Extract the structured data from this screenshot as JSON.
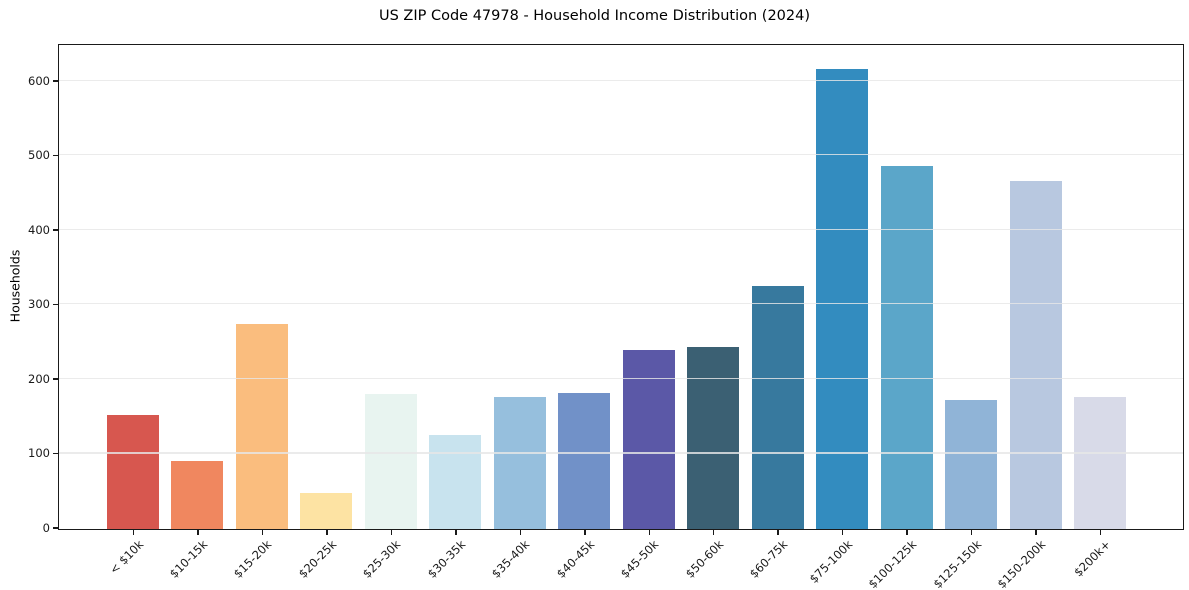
{
  "chart_data": {
    "type": "bar",
    "title": "US ZIP Code 47978 - Household Income Distribution (2024)",
    "xlabel": "",
    "ylabel": "Households",
    "categories": [
      "< $10k",
      "$10-15k",
      "$15-20k",
      "$20-25k",
      "$25-30k",
      "$30-35k",
      "$35-40k",
      "$40-45k",
      "$45-50k",
      "$50-60k",
      "$60-75k",
      "$75-100k",
      "$100-125k",
      "$125-150k",
      "$150-200k",
      "$200k+"
    ],
    "values": [
      152,
      91,
      275,
      47,
      181,
      126,
      177,
      182,
      240,
      244,
      326,
      617,
      486,
      173,
      466,
      176
    ],
    "bar_colors": [
      "#d7574f",
      "#f0875f",
      "#fabd7e",
      "#fde3a3",
      "#e8f4f0",
      "#c8e3ee",
      "#96bfdd",
      "#7191c8",
      "#5b58a7",
      "#3b6073",
      "#37799e",
      "#338cbf",
      "#5ba6c9",
      "#90b4d7",
      "#b8c8e0",
      "#d8dae8"
    ],
    "ylim": [
      0,
      648
    ],
    "yticks": [
      0,
      100,
      200,
      300,
      400,
      500,
      600
    ],
    "grid": "horizontal",
    "grid_over_bars": true,
    "legend": "none",
    "x_tick_rotation": 45,
    "background_color": "#ffffff",
    "spine_color": "#1a1a1a"
  }
}
